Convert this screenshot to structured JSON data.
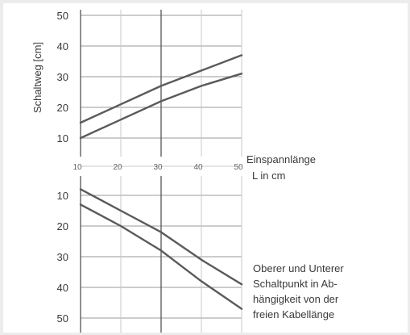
{
  "chart_data": [
    {
      "type": "line",
      "panel": "upper",
      "ylabel": "Schaltweg [cm]",
      "xlim": [
        10,
        50
      ],
      "ylim": [
        10,
        50
      ],
      "y_ticks": [
        "50",
        "40",
        "30",
        "20",
        "10"
      ],
      "grid": true,
      "series": [
        {
          "x": [
            10,
            20,
            30,
            40,
            50
          ],
          "values": [
            15,
            21,
            27,
            32,
            37
          ]
        },
        {
          "x": [
            10,
            20,
            30,
            40,
            50
          ],
          "values": [
            10,
            16,
            22,
            27,
            31
          ]
        }
      ]
    },
    {
      "type": "line",
      "panel": "lower",
      "xlabel": "Einspannlänge L in cm",
      "x_ticks": [
        "10",
        "20",
        "30",
        "40",
        "50"
      ],
      "xlim": [
        10,
        50
      ],
      "ylim": [
        10,
        50
      ],
      "y_ticks": [
        "10",
        "20",
        "30",
        "40",
        "50"
      ],
      "y_inverted": true,
      "grid": true,
      "annotation": [
        "Oberer und Unterer",
        "Schaltpunkt in Ab-",
        "hängigkeit von der",
        "freien Kabellänge"
      ],
      "series": [
        {
          "x": [
            10,
            20,
            30,
            40,
            50
          ],
          "values": [
            8,
            15,
            22,
            31,
            39
          ]
        },
        {
          "x": [
            10,
            20,
            30,
            40,
            50
          ],
          "values": [
            13,
            20,
            28,
            38,
            47
          ]
        }
      ]
    }
  ],
  "colors": {
    "line": "#5a5a5a",
    "grid": "#9a9a9a",
    "text": "#3a3a3a"
  }
}
